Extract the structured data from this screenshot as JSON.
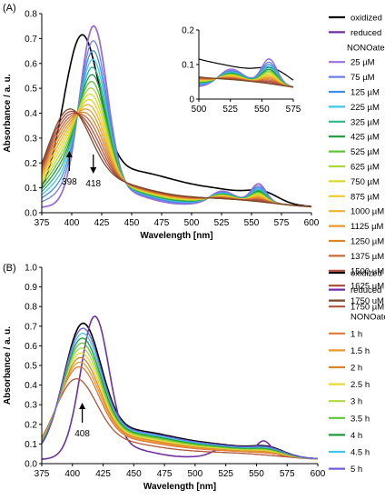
{
  "chart_data": [
    {
      "panel": "(A)",
      "type": "line",
      "xlabel": "Wavelength [nm]",
      "ylabel": "Absorbance / a. u.",
      "xlim": [
        375,
        600
      ],
      "ylim": [
        0,
        0.8
      ],
      "xticks": [
        "375",
        "400",
        "425",
        "450",
        "475",
        "500",
        "525",
        "550",
        "575",
        "600"
      ],
      "yticks": [
        "0.0",
        "0.1",
        "0.2",
        "0.3",
        "0.4",
        "0.5",
        "0.6",
        "0.7",
        "0.8"
      ],
      "annotations": [
        {
          "label": "398",
          "direction": "up",
          "x": 398
        },
        {
          "label": "418",
          "direction": "down",
          "x": 418
        }
      ],
      "legend_position": "right",
      "legend_extra": "NONOate",
      "series": [
        {
          "name": "oxidized",
          "color": "#000000"
        },
        {
          "name": "reduced",
          "color": "#7030a0"
        },
        {
          "name": "25 µM",
          "color": "#9b6fe0"
        },
        {
          "name": "75 µM",
          "color": "#6e7fe8"
        },
        {
          "name": "125 µM",
          "color": "#3f8fe6"
        },
        {
          "name": "225 µM",
          "color": "#40c8e8"
        },
        {
          "name": "325 µM",
          "color": "#2fb58a"
        },
        {
          "name": "425 µM",
          "color": "#1f9a3a"
        },
        {
          "name": "525 µM",
          "color": "#5ec43a"
        },
        {
          "name": "625 µM",
          "color": "#a8d83a"
        },
        {
          "name": "750 µM",
          "color": "#d9dc2e"
        },
        {
          "name": "875 µM",
          "color": "#f0cc2a"
        },
        {
          "name": "1000 µM",
          "color": "#f0b030"
        },
        {
          "name": "1125 µM",
          "color": "#e89a2e"
        },
        {
          "name": "1250 µM",
          "color": "#d8862a"
        },
        {
          "name": "1375 µM",
          "color": "#c96a3a"
        },
        {
          "name": "1500 µM",
          "color": "#b85040"
        },
        {
          "name": "1625 µM",
          "color": "#a4483a"
        },
        {
          "name": "1750 uM",
          "color": "#7a4a28"
        }
      ],
      "inset": {
        "xlim": [
          500,
          575
        ],
        "ylim": [
          0,
          0.2
        ],
        "xticks": [
          "500",
          "525",
          "550",
          "575"
        ],
        "yticks": [
          "0",
          "0.1",
          "0.2"
        ]
      }
    },
    {
      "panel": "(B)",
      "type": "line",
      "xlabel": "Wavelength [nm]",
      "ylabel": "Absorbance / a. u.",
      "xlim": [
        375,
        600
      ],
      "ylim": [
        0,
        1.0
      ],
      "xticks": [
        "375",
        "400",
        "425",
        "450",
        "475",
        "500",
        "525",
        "550",
        "575",
        "600"
      ],
      "yticks": [
        "0.0",
        "0.1",
        "0.2",
        "0.3",
        "0.4",
        "0.5",
        "0.6",
        "0.7",
        "0.8",
        "0.9",
        "1.0"
      ],
      "annotations": [
        {
          "label": "408",
          "direction": "up",
          "x": 408
        }
      ],
      "legend_position": "right",
      "series": [
        {
          "name": "oxidized",
          "color": "#000000"
        },
        {
          "name": "reduced",
          "color": "#7030a0"
        },
        {
          "name": "1750 µM NONOate",
          "color": "#b0553a"
        },
        {
          "name": "1 h",
          "color": "#e0783a"
        },
        {
          "name": "1.5 h",
          "color": "#e89a2e"
        },
        {
          "name": "2 h",
          "color": "#d8862a"
        },
        {
          "name": "2.5 h",
          "color": "#e8d838"
        },
        {
          "name": "3 h",
          "color": "#b0d83a"
        },
        {
          "name": "3.5 h",
          "color": "#5ec43a"
        },
        {
          "name": "4 h",
          "color": "#1f9a3a"
        },
        {
          "name": "4.5 h",
          "color": "#40c8e8"
        },
        {
          "name": "5 h",
          "color": "#7060d8"
        }
      ]
    }
  ]
}
